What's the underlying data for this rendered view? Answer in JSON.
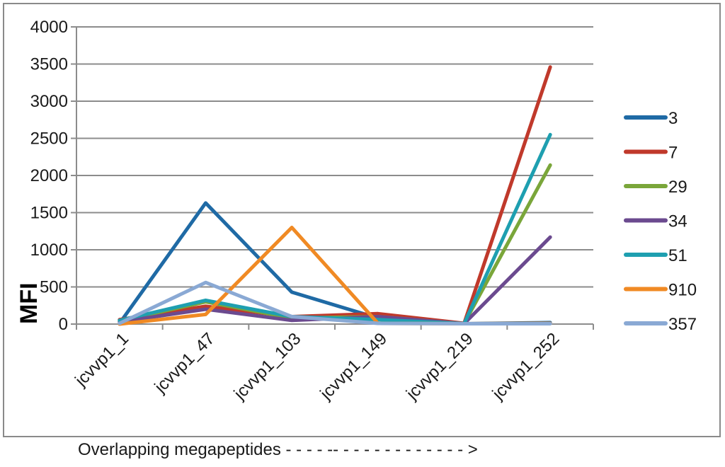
{
  "chart_data": {
    "type": "line",
    "categories": [
      "jcvvp1_1",
      "jcvvp1_47",
      "jcvvp1_103",
      "jcvvp1_149",
      "jcvvp1_219",
      "jcvvp1_252"
    ],
    "series": [
      {
        "name": "3",
        "color": "#1f6aa5",
        "values": [
          10,
          1630,
          430,
          80,
          5,
          20
        ]
      },
      {
        "name": "7",
        "color": "#c0392b",
        "values": [
          60,
          240,
          100,
          140,
          10,
          3460
        ]
      },
      {
        "name": "29",
        "color": "#7aa63a",
        "values": [
          40,
          300,
          80,
          100,
          5,
          2140
        ]
      },
      {
        "name": "34",
        "color": "#6b4a8f",
        "values": [
          30,
          200,
          50,
          100,
          5,
          1170
        ]
      },
      {
        "name": "51",
        "color": "#1e9fb0",
        "values": [
          50,
          320,
          100,
          60,
          5,
          2550
        ]
      },
      {
        "name": "910",
        "color": "#f08a24",
        "values": [
          0,
          130,
          1300,
          10,
          5,
          10
        ]
      },
      {
        "name": "357",
        "color": "#8aa9d4",
        "values": [
          10,
          560,
          100,
          10,
          5,
          5
        ]
      }
    ],
    "ylabel": "MFI",
    "xlabel": "Overlapping megapeptides - - - - -- - - - - - - - - - - - - >",
    "ylim": [
      0,
      4000
    ],
    "yticks": [
      0,
      500,
      1000,
      1500,
      2000,
      2500,
      3000,
      3500,
      4000
    ],
    "grid": true,
    "legend": "right"
  }
}
